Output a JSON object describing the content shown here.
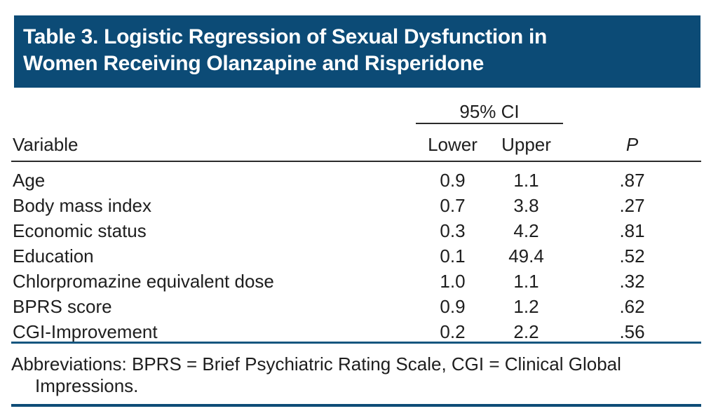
{
  "title": {
    "line1": "Table 3. Logistic Regression of Sexual Dysfunction in",
    "line2": "Women Receiving Olanzapine and Risperidone"
  },
  "header": {
    "spanner": "95% CI",
    "variable": "Variable",
    "lower": "Lower",
    "upper": "Upper",
    "p": "P"
  },
  "rows": [
    {
      "variable": "Age",
      "lower": "0.9",
      "upper": "1.1",
      "p": ".87"
    },
    {
      "variable": "Body mass index",
      "lower": "0.7",
      "upper": "3.8",
      "p": ".27"
    },
    {
      "variable": "Economic status",
      "lower": "0.3",
      "upper": "4.2",
      "p": ".81"
    },
    {
      "variable": "Education",
      "lower": "0.1",
      "upper": "49.4",
      "p": ".52"
    },
    {
      "variable": "Chlorpromazine equivalent dose",
      "lower": "1.0",
      "upper": "1.1",
      "p": ".32"
    },
    {
      "variable": "BPRS score",
      "lower": "0.9",
      "upper": "1.2",
      "p": ".62"
    },
    {
      "variable": "CGI-Improvement",
      "lower": "0.2",
      "upper": "2.2",
      "p": ".56"
    }
  ],
  "footnote": {
    "line1": "Abbreviations: BPRS = Brief Psychiatric Rating Scale, CGI = Clinical Global",
    "line2": "Impressions."
  },
  "colors": {
    "banner_bg": "#0c4b76",
    "banner_text": "#ffffff",
    "rule_dark": "#2b2b2b",
    "rule_blue_mid": "#15567f",
    "rule_blue_bottom": "#0e4c77"
  }
}
